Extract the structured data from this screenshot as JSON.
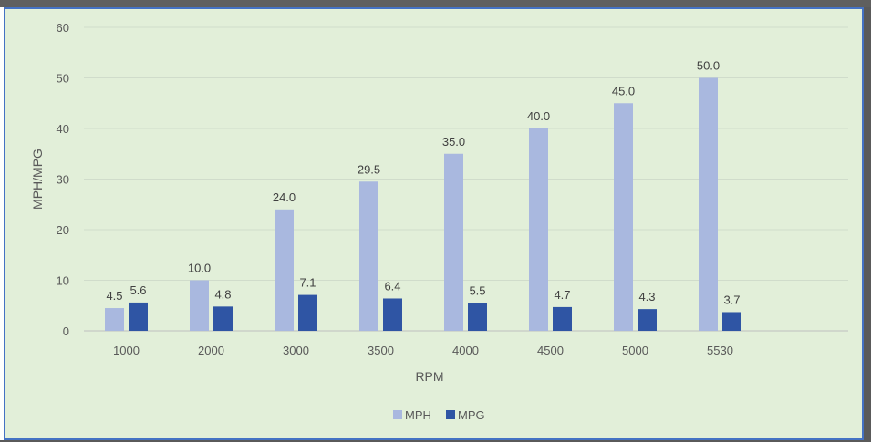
{
  "chart_data": {
    "type": "bar",
    "categories": [
      "1000",
      "2000",
      "3000",
      "3500",
      "4000",
      "4500",
      "5000",
      "5530"
    ],
    "series": [
      {
        "name": "MPH",
        "values": [
          4.5,
          10.0,
          24.0,
          29.5,
          35.0,
          40.0,
          45.0,
          50.0
        ],
        "labels": [
          "4.5",
          "10.0",
          "24.0",
          "29.5",
          "35.0",
          "40.0",
          "45.0",
          "50.0"
        ],
        "color": "#a9b8df"
      },
      {
        "name": "MPG",
        "values": [
          5.6,
          4.8,
          7.1,
          6.4,
          5.5,
          4.7,
          4.3,
          3.7
        ],
        "labels": [
          "5.6",
          "4.8",
          "7.1",
          "6.4",
          "5.5",
          "4.7",
          "4.3",
          "3.7"
        ],
        "color": "#2f55a4"
      }
    ],
    "xlabel": "RPM",
    "ylabel": "MPH/MPG",
    "ylim": [
      0,
      60
    ],
    "yticks": [
      "0",
      "10",
      "20",
      "30",
      "40",
      "50",
      "60"
    ],
    "grid": true,
    "legend": "bottom",
    "background": "#e2efd9",
    "border_color": "#4472c4"
  }
}
